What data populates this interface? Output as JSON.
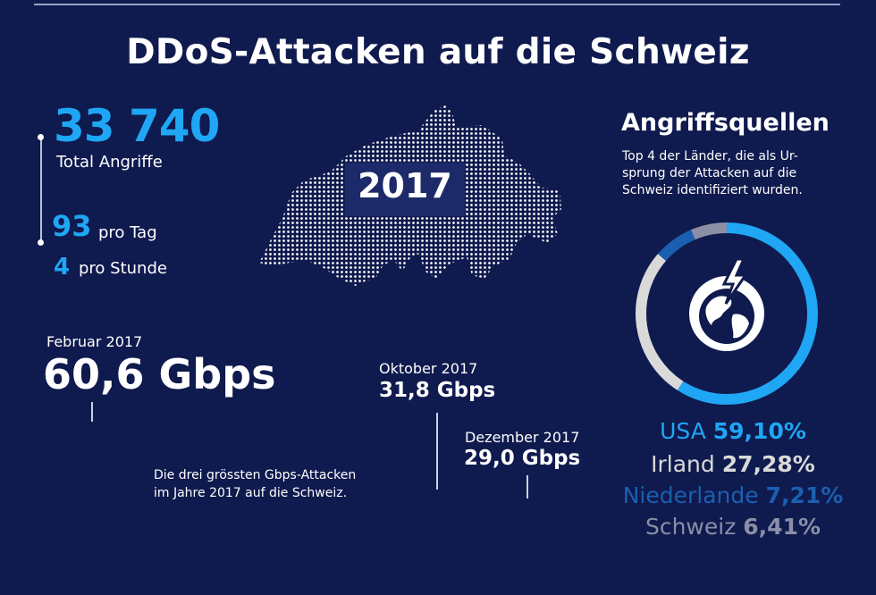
{
  "title": "DDoS-Attacken auf die Schweiz",
  "stats": {
    "total_value": "33 740",
    "total_label": "Total Angriffe",
    "per_day_value": "93",
    "per_day_label": "pro Tag",
    "per_hour_value": "4",
    "per_hour_label": "pro Stunde"
  },
  "map": {
    "year": "2017"
  },
  "attacks": [
    {
      "date": "Februar 2017",
      "value": "60,6 Gbps"
    },
    {
      "date": "Oktober 2017",
      "value": "31,8 Gbps"
    },
    {
      "date": "Dezember 2017",
      "value": "29,0 Gbps"
    }
  ],
  "attacks_note": [
    "Die drei grössten Gbps-Attacken",
    "im Jahre 2017 auf die Schweiz."
  ],
  "sources": {
    "title": "Angriffsquellen",
    "description": [
      "Top 4 der Länder, die als Ur-",
      "sprung der Attacken auf die",
      "Schweiz identifiziert wurden."
    ],
    "icon": "globe-lightning-icon"
  },
  "colors": {
    "background": "#0f1a4e",
    "accent": "#1fa6f4",
    "usa": "#1fa6f4",
    "irland": "#d9d9d9",
    "niederlande": "#1b5fb0",
    "schweiz": "#8a8fa6"
  },
  "chart_data": {
    "type": "pie",
    "categories": [
      "USA",
      "Irland",
      "Niederlande",
      "Schweiz"
    ],
    "labels": [
      "59,10%",
      "27,28%",
      "7,21%",
      "6,41%"
    ],
    "values": [
      59.1,
      27.28,
      7.21,
      6.41
    ]
  }
}
